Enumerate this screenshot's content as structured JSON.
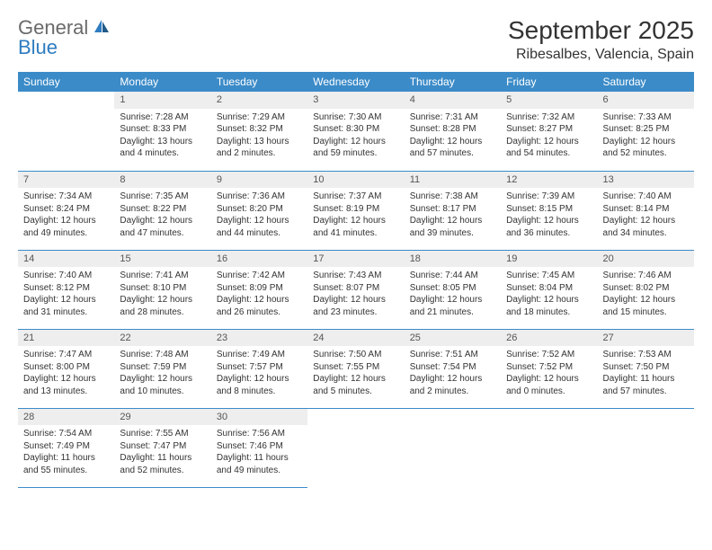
{
  "logo": {
    "general": "General",
    "blue": "Blue"
  },
  "title": {
    "month_year": "September 2025",
    "location": "Ribesalbes, Valencia, Spain"
  },
  "colors": {
    "header_bg": "#3b8bc8",
    "header_text": "#ffffff",
    "day_num_bg": "#eeeeee",
    "border": "#3b8bc8",
    "logo_general": "#6a6a6a",
    "logo_blue": "#2e7cc0"
  },
  "weekdays": [
    "Sunday",
    "Monday",
    "Tuesday",
    "Wednesday",
    "Thursday",
    "Friday",
    "Saturday"
  ],
  "weeks": [
    [
      {
        "day": "",
        "sunrise": "",
        "sunset": "",
        "daylight": ""
      },
      {
        "day": "1",
        "sunrise": "Sunrise: 7:28 AM",
        "sunset": "Sunset: 8:33 PM",
        "daylight": "Daylight: 13 hours and 4 minutes."
      },
      {
        "day": "2",
        "sunrise": "Sunrise: 7:29 AM",
        "sunset": "Sunset: 8:32 PM",
        "daylight": "Daylight: 13 hours and 2 minutes."
      },
      {
        "day": "3",
        "sunrise": "Sunrise: 7:30 AM",
        "sunset": "Sunset: 8:30 PM",
        "daylight": "Daylight: 12 hours and 59 minutes."
      },
      {
        "day": "4",
        "sunrise": "Sunrise: 7:31 AM",
        "sunset": "Sunset: 8:28 PM",
        "daylight": "Daylight: 12 hours and 57 minutes."
      },
      {
        "day": "5",
        "sunrise": "Sunrise: 7:32 AM",
        "sunset": "Sunset: 8:27 PM",
        "daylight": "Daylight: 12 hours and 54 minutes."
      },
      {
        "day": "6",
        "sunrise": "Sunrise: 7:33 AM",
        "sunset": "Sunset: 8:25 PM",
        "daylight": "Daylight: 12 hours and 52 minutes."
      }
    ],
    [
      {
        "day": "7",
        "sunrise": "Sunrise: 7:34 AM",
        "sunset": "Sunset: 8:24 PM",
        "daylight": "Daylight: 12 hours and 49 minutes."
      },
      {
        "day": "8",
        "sunrise": "Sunrise: 7:35 AM",
        "sunset": "Sunset: 8:22 PM",
        "daylight": "Daylight: 12 hours and 47 minutes."
      },
      {
        "day": "9",
        "sunrise": "Sunrise: 7:36 AM",
        "sunset": "Sunset: 8:20 PM",
        "daylight": "Daylight: 12 hours and 44 minutes."
      },
      {
        "day": "10",
        "sunrise": "Sunrise: 7:37 AM",
        "sunset": "Sunset: 8:19 PM",
        "daylight": "Daylight: 12 hours and 41 minutes."
      },
      {
        "day": "11",
        "sunrise": "Sunrise: 7:38 AM",
        "sunset": "Sunset: 8:17 PM",
        "daylight": "Daylight: 12 hours and 39 minutes."
      },
      {
        "day": "12",
        "sunrise": "Sunrise: 7:39 AM",
        "sunset": "Sunset: 8:15 PM",
        "daylight": "Daylight: 12 hours and 36 minutes."
      },
      {
        "day": "13",
        "sunrise": "Sunrise: 7:40 AM",
        "sunset": "Sunset: 8:14 PM",
        "daylight": "Daylight: 12 hours and 34 minutes."
      }
    ],
    [
      {
        "day": "14",
        "sunrise": "Sunrise: 7:40 AM",
        "sunset": "Sunset: 8:12 PM",
        "daylight": "Daylight: 12 hours and 31 minutes."
      },
      {
        "day": "15",
        "sunrise": "Sunrise: 7:41 AM",
        "sunset": "Sunset: 8:10 PM",
        "daylight": "Daylight: 12 hours and 28 minutes."
      },
      {
        "day": "16",
        "sunrise": "Sunrise: 7:42 AM",
        "sunset": "Sunset: 8:09 PM",
        "daylight": "Daylight: 12 hours and 26 minutes."
      },
      {
        "day": "17",
        "sunrise": "Sunrise: 7:43 AM",
        "sunset": "Sunset: 8:07 PM",
        "daylight": "Daylight: 12 hours and 23 minutes."
      },
      {
        "day": "18",
        "sunrise": "Sunrise: 7:44 AM",
        "sunset": "Sunset: 8:05 PM",
        "daylight": "Daylight: 12 hours and 21 minutes."
      },
      {
        "day": "19",
        "sunrise": "Sunrise: 7:45 AM",
        "sunset": "Sunset: 8:04 PM",
        "daylight": "Daylight: 12 hours and 18 minutes."
      },
      {
        "day": "20",
        "sunrise": "Sunrise: 7:46 AM",
        "sunset": "Sunset: 8:02 PM",
        "daylight": "Daylight: 12 hours and 15 minutes."
      }
    ],
    [
      {
        "day": "21",
        "sunrise": "Sunrise: 7:47 AM",
        "sunset": "Sunset: 8:00 PM",
        "daylight": "Daylight: 12 hours and 13 minutes."
      },
      {
        "day": "22",
        "sunrise": "Sunrise: 7:48 AM",
        "sunset": "Sunset: 7:59 PM",
        "daylight": "Daylight: 12 hours and 10 minutes."
      },
      {
        "day": "23",
        "sunrise": "Sunrise: 7:49 AM",
        "sunset": "Sunset: 7:57 PM",
        "daylight": "Daylight: 12 hours and 8 minutes."
      },
      {
        "day": "24",
        "sunrise": "Sunrise: 7:50 AM",
        "sunset": "Sunset: 7:55 PM",
        "daylight": "Daylight: 12 hours and 5 minutes."
      },
      {
        "day": "25",
        "sunrise": "Sunrise: 7:51 AM",
        "sunset": "Sunset: 7:54 PM",
        "daylight": "Daylight: 12 hours and 2 minutes."
      },
      {
        "day": "26",
        "sunrise": "Sunrise: 7:52 AM",
        "sunset": "Sunset: 7:52 PM",
        "daylight": "Daylight: 12 hours and 0 minutes."
      },
      {
        "day": "27",
        "sunrise": "Sunrise: 7:53 AM",
        "sunset": "Sunset: 7:50 PM",
        "daylight": "Daylight: 11 hours and 57 minutes."
      }
    ],
    [
      {
        "day": "28",
        "sunrise": "Sunrise: 7:54 AM",
        "sunset": "Sunset: 7:49 PM",
        "daylight": "Daylight: 11 hours and 55 minutes."
      },
      {
        "day": "29",
        "sunrise": "Sunrise: 7:55 AM",
        "sunset": "Sunset: 7:47 PM",
        "daylight": "Daylight: 11 hours and 52 minutes."
      },
      {
        "day": "30",
        "sunrise": "Sunrise: 7:56 AM",
        "sunset": "Sunset: 7:46 PM",
        "daylight": "Daylight: 11 hours and 49 minutes."
      },
      {
        "day": "",
        "sunrise": "",
        "sunset": "",
        "daylight": ""
      },
      {
        "day": "",
        "sunrise": "",
        "sunset": "",
        "daylight": ""
      },
      {
        "day": "",
        "sunrise": "",
        "sunset": "",
        "daylight": ""
      },
      {
        "day": "",
        "sunrise": "",
        "sunset": "",
        "daylight": ""
      }
    ]
  ]
}
